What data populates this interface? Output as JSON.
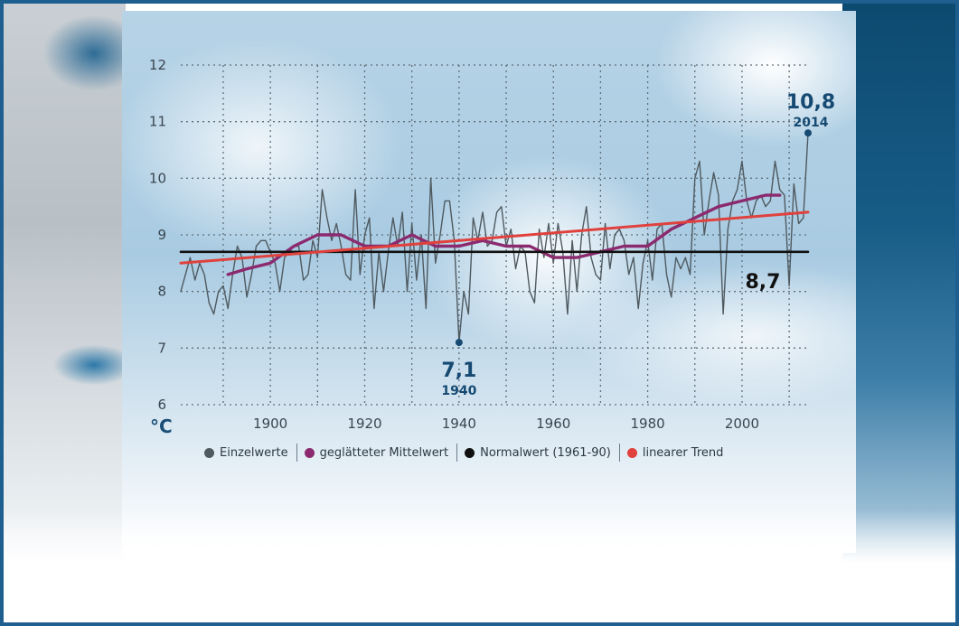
{
  "chart_data": {
    "type": "line",
    "x_ticks": [
      1900,
      1920,
      1940,
      1960,
      1980,
      2000
    ],
    "y_ticks": [
      6,
      7,
      8,
      9,
      10,
      11,
      12
    ],
    "xlim": [
      1881,
      2014
    ],
    "ylim": [
      6,
      12
    ],
    "unit_label": "°C",
    "grid": true,
    "legend_position": "bottom",
    "series": [
      {
        "name": "Einzelwerte",
        "color": "#4f5a60",
        "x": [
          1881,
          1882,
          1883,
          1884,
          1885,
          1886,
          1887,
          1888,
          1889,
          1890,
          1891,
          1892,
          1893,
          1894,
          1895,
          1896,
          1897,
          1898,
          1899,
          1900,
          1901,
          1902,
          1903,
          1904,
          1905,
          1906,
          1907,
          1908,
          1909,
          1910,
          1911,
          1912,
          1913,
          1914,
          1915,
          1916,
          1917,
          1918,
          1919,
          1920,
          1921,
          1922,
          1923,
          1924,
          1925,
          1926,
          1927,
          1928,
          1929,
          1930,
          1931,
          1932,
          1933,
          1934,
          1935,
          1936,
          1937,
          1938,
          1939,
          1940,
          1941,
          1942,
          1943,
          1944,
          1945,
          1946,
          1947,
          1948,
          1949,
          1950,
          1951,
          1952,
          1953,
          1954,
          1955,
          1956,
          1957,
          1958,
          1959,
          1960,
          1961,
          1962,
          1963,
          1964,
          1965,
          1966,
          1967,
          1968,
          1969,
          1970,
          1971,
          1972,
          1973,
          1974,
          1975,
          1976,
          1977,
          1978,
          1979,
          1980,
          1981,
          1982,
          1983,
          1984,
          1985,
          1986,
          1987,
          1988,
          1989,
          1990,
          1991,
          1992,
          1993,
          1994,
          1995,
          1996,
          1997,
          1998,
          1999,
          2000,
          2001,
          2002,
          2003,
          2004,
          2005,
          2006,
          2007,
          2008,
          2009,
          2010,
          2011,
          2012,
          2013,
          2014
        ],
        "values": [
          8.0,
          8.3,
          8.6,
          8.2,
          8.5,
          8.3,
          7.8,
          7.6,
          8.0,
          8.1,
          7.7,
          8.3,
          8.8,
          8.6,
          7.9,
          8.3,
          8.8,
          8.9,
          8.9,
          8.7,
          8.5,
          8.0,
          8.6,
          8.7,
          8.8,
          8.8,
          8.2,
          8.3,
          8.9,
          8.6,
          9.8,
          9.3,
          8.9,
          9.2,
          8.8,
          8.3,
          8.2,
          9.8,
          8.3,
          9.0,
          9.3,
          7.7,
          8.7,
          8.0,
          8.7,
          9.3,
          8.8,
          9.4,
          8.0,
          9.2,
          8.2,
          9.0,
          7.7,
          10.0,
          8.5,
          9.0,
          9.6,
          9.6,
          8.9,
          7.1,
          8.0,
          7.6,
          9.3,
          8.9,
          9.4,
          8.8,
          8.9,
          9.4,
          9.5,
          8.8,
          9.1,
          8.4,
          8.8,
          8.7,
          8.0,
          7.8,
          9.1,
          8.6,
          9.2,
          8.5,
          9.2,
          8.7,
          7.6,
          8.9,
          8.0,
          9.0,
          9.5,
          8.6,
          8.3,
          8.2,
          9.2,
          8.4,
          9.0,
          9.1,
          8.9,
          8.3,
          8.6,
          7.7,
          8.5,
          8.9,
          8.2,
          9.1,
          9.2,
          8.3,
          7.9,
          8.6,
          8.4,
          8.6,
          8.3,
          10.0,
          10.3,
          9.0,
          9.6,
          10.1,
          9.7,
          7.6,
          9.1,
          9.6,
          9.8,
          10.3,
          9.6,
          9.3,
          9.6,
          9.7,
          9.5,
          9.6,
          10.3,
          9.8,
          9.7,
          8.1,
          9.9,
          9.2,
          9.3,
          10.8
        ]
      },
      {
        "name": "geglätteter Mittelwert",
        "color": "#8b2a6e",
        "x": [
          1891,
          1895,
          1900,
          1905,
          1910,
          1915,
          1920,
          1925,
          1930,
          1935,
          1940,
          1945,
          1950,
          1955,
          1960,
          1965,
          1970,
          1975,
          1980,
          1985,
          1990,
          1995,
          2000,
          2005,
          2008
        ],
        "values": [
          8.3,
          8.4,
          8.5,
          8.8,
          9.0,
          9.0,
          8.8,
          8.8,
          9.0,
          8.8,
          8.8,
          8.9,
          8.8,
          8.8,
          8.6,
          8.6,
          8.7,
          8.8,
          8.8,
          9.1,
          9.3,
          9.5,
          9.6,
          9.7,
          9.7
        ]
      },
      {
        "name": "Normalwert (1961-90)",
        "color": "#101010",
        "x": [
          1881,
          2014
        ],
        "values": [
          8.7,
          8.7
        ]
      },
      {
        "name": "linearer Trend",
        "color": "#e0413d",
        "x": [
          1881,
          2014
        ],
        "values": [
          8.5,
          9.4
        ]
      }
    ],
    "annotations": [
      {
        "value_label": "10,8",
        "year_label": "2014",
        "x": 2014,
        "y": 10.8
      },
      {
        "value_label": "7,1",
        "year_label": "1940",
        "x": 1940,
        "y": 7.1
      },
      {
        "value_label": "8,7",
        "x": 2008,
        "y": 8.7
      }
    ]
  }
}
